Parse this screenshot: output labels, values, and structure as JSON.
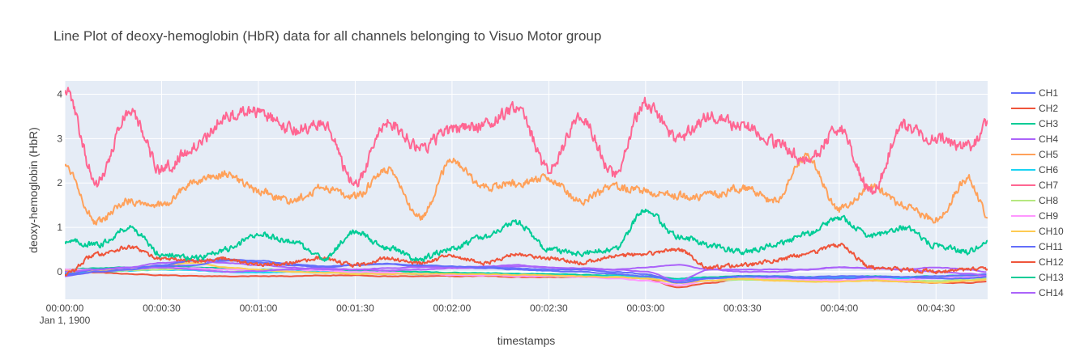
{
  "chart_data": {
    "type": "line",
    "title": "Line Plot of deoxy-hemoglobin (HbR) data for all channels belonging to Visuo Motor group",
    "xlabel": "timestamps",
    "ylabel": "deoxy-hemoglobin (HbR)",
    "x_range_seconds": [
      0,
      286
    ],
    "ylim": [
      -0.62,
      4.3
    ],
    "grid": true,
    "legend_position": "right",
    "x_ticks": [
      {
        "t": 0,
        "label": "00:00:00",
        "sublabel": "Jan 1, 1900"
      },
      {
        "t": 30,
        "label": "00:00:30"
      },
      {
        "t": 60,
        "label": "00:01:00"
      },
      {
        "t": 90,
        "label": "00:01:30"
      },
      {
        "t": 120,
        "label": "00:02:00"
      },
      {
        "t": 150,
        "label": "00:02:30"
      },
      {
        "t": 180,
        "label": "00:03:00"
      },
      {
        "t": 210,
        "label": "00:03:30"
      },
      {
        "t": 240,
        "label": "00:04:00"
      },
      {
        "t": 270,
        "label": "00:04:30"
      }
    ],
    "y_ticks": [
      {
        "v": 0,
        "label": "0"
      },
      {
        "v": 1,
        "label": "1"
      },
      {
        "v": 2,
        "label": "2"
      },
      {
        "v": 3,
        "label": "3"
      },
      {
        "v": 4,
        "label": "4"
      }
    ],
    "x_sample_seconds": [
      0,
      10,
      20,
      30,
      40,
      50,
      60,
      70,
      80,
      90,
      100,
      110,
      120,
      130,
      140,
      150,
      160,
      170,
      180,
      190,
      200,
      210,
      220,
      230,
      240,
      250,
      260,
      270,
      280,
      286
    ],
    "series": [
      {
        "name": "CH1",
        "color": "#636efa",
        "values": [
          -0.05,
          0.05,
          0.1,
          0.12,
          0.15,
          0.25,
          0.2,
          0.15,
          0.1,
          0.15,
          0.18,
          0.12,
          0.1,
          0.08,
          0.05,
          0.02,
          0.0,
          -0.05,
          -0.1,
          -0.2,
          -0.15,
          -0.1,
          -0.1,
          -0.12,
          -0.1,
          -0.1,
          -0.12,
          -0.1,
          -0.08,
          -0.05
        ]
      },
      {
        "name": "CH2",
        "color": "#ef553b",
        "values": [
          -0.05,
          0.4,
          0.55,
          0.3,
          0.25,
          0.3,
          0.15,
          0.2,
          0.3,
          0.15,
          0.3,
          0.2,
          0.35,
          0.2,
          0.4,
          0.3,
          0.2,
          0.35,
          0.4,
          0.5,
          0.1,
          0.15,
          0.25,
          0.4,
          0.6,
          0.1,
          0.05,
          0.0,
          0.05,
          0.05
        ]
      },
      {
        "name": "CH3",
        "color": "#00cc96",
        "values": [
          0.7,
          0.6,
          1.0,
          0.4,
          0.3,
          0.5,
          0.85,
          0.7,
          0.3,
          0.9,
          0.55,
          0.3,
          0.5,
          0.8,
          1.1,
          0.5,
          0.4,
          0.5,
          1.4,
          0.8,
          0.6,
          0.45,
          0.6,
          0.85,
          1.2,
          0.8,
          1.0,
          0.6,
          0.45,
          0.7
        ]
      },
      {
        "name": "CH4",
        "color": "#ab63fa",
        "values": [
          -0.1,
          0.0,
          0.05,
          0.1,
          0.05,
          0.0,
          0.02,
          0.05,
          0.08,
          0.05,
          0.03,
          0.05,
          0.08,
          0.1,
          0.12,
          0.1,
          0.08,
          0.05,
          0.0,
          -0.2,
          0.05,
          0.0,
          0.0,
          0.05,
          0.1,
          0.08,
          0.05,
          0.0,
          -0.05,
          -0.1
        ]
      },
      {
        "name": "CH5",
        "color": "#ffa15a",
        "values": [
          2.4,
          1.1,
          1.6,
          1.5,
          2.0,
          2.2,
          1.8,
          1.6,
          1.9,
          1.7,
          2.3,
          1.2,
          2.5,
          1.9,
          2.0,
          2.1,
          1.6,
          1.9,
          1.8,
          1.7,
          1.7,
          1.9,
          1.6,
          2.6,
          1.4,
          1.9,
          1.5,
          1.2,
          2.1,
          1.3
        ]
      },
      {
        "name": "CH6",
        "color": "#19d3f3",
        "values": [
          -0.02,
          0.0,
          0.02,
          0.05,
          0.03,
          0.0,
          -0.02,
          0.0,
          0.02,
          0.0,
          -0.02,
          -0.05,
          -0.05,
          -0.05,
          -0.07,
          -0.08,
          -0.1,
          -0.1,
          -0.12,
          -0.18,
          -0.15,
          -0.12,
          -0.15,
          -0.15,
          -0.12,
          -0.12,
          -0.15,
          -0.15,
          -0.12,
          -0.1
        ]
      },
      {
        "name": "CH7",
        "color": "#ff6692",
        "values": [
          4.1,
          2.0,
          3.6,
          2.3,
          2.8,
          3.5,
          3.6,
          3.2,
          3.3,
          2.0,
          3.4,
          2.8,
          3.2,
          3.3,
          3.7,
          2.3,
          3.5,
          2.2,
          3.8,
          3.0,
          3.5,
          3.3,
          2.9,
          2.5,
          3.2,
          1.8,
          3.3,
          3.0,
          2.8,
          3.3
        ]
      },
      {
        "name": "CH8",
        "color": "#b6e880",
        "values": [
          0.0,
          0.02,
          0.03,
          0.05,
          0.06,
          0.05,
          0.03,
          0.0,
          -0.02,
          -0.03,
          -0.05,
          -0.05,
          -0.06,
          -0.07,
          -0.08,
          -0.1,
          -0.12,
          -0.12,
          -0.15,
          -0.25,
          -0.2,
          -0.18,
          -0.18,
          -0.2,
          -0.2,
          -0.18,
          -0.2,
          -0.2,
          -0.18,
          -0.15
        ]
      },
      {
        "name": "CH9",
        "color": "#ff97ff",
        "values": [
          0.05,
          0.05,
          0.08,
          0.1,
          0.08,
          0.05,
          0.05,
          0.05,
          0.03,
          0.0,
          -0.02,
          -0.05,
          -0.08,
          -0.08,
          -0.1,
          -0.1,
          -0.12,
          -0.15,
          -0.2,
          -0.3,
          -0.2,
          -0.15,
          -0.15,
          -0.18,
          -0.2,
          -0.15,
          -0.18,
          -0.15,
          -0.12,
          -0.1
        ]
      },
      {
        "name": "CH10",
        "color": "#fecb52",
        "values": [
          0.02,
          0.03,
          0.05,
          0.15,
          0.2,
          0.1,
          0.05,
          0.0,
          -0.02,
          -0.05,
          -0.05,
          -0.05,
          -0.05,
          -0.06,
          -0.07,
          -0.08,
          -0.1,
          -0.12,
          -0.15,
          -0.25,
          -0.2,
          -0.15,
          -0.2,
          -0.22,
          -0.22,
          -0.2,
          -0.22,
          -0.25,
          -0.2,
          -0.18
        ]
      },
      {
        "name": "CH11",
        "color": "#636efa",
        "values": [
          -0.08,
          0.0,
          0.05,
          0.15,
          0.25,
          0.28,
          0.25,
          0.18,
          0.12,
          0.15,
          0.18,
          0.15,
          0.12,
          0.1,
          0.08,
          0.05,
          0.05,
          0.0,
          -0.05,
          -0.25,
          -0.15,
          -0.1,
          -0.12,
          -0.15,
          -0.15,
          -0.12,
          -0.12,
          -0.15,
          -0.15,
          -0.12
        ]
      },
      {
        "name": "CH12",
        "color": "#ef553b",
        "values": [
          0.0,
          -0.02,
          -0.05,
          -0.08,
          -0.1,
          -0.1,
          -0.1,
          -0.1,
          -0.08,
          -0.08,
          -0.1,
          -0.1,
          -0.1,
          -0.1,
          -0.12,
          -0.12,
          -0.12,
          -0.12,
          -0.15,
          -0.35,
          -0.25,
          -0.15,
          -0.15,
          -0.18,
          -0.2,
          -0.2,
          -0.22,
          -0.25,
          -0.25,
          -0.22
        ]
      },
      {
        "name": "CH13",
        "color": "#00cc96",
        "values": [
          0.05,
          0.08,
          0.1,
          0.12,
          0.1,
          0.08,
          0.05,
          0.05,
          0.05,
          0.03,
          0.02,
          0.0,
          -0.02,
          -0.03,
          -0.05,
          -0.05,
          -0.07,
          -0.08,
          -0.1,
          -0.15,
          -0.12,
          -0.1,
          -0.1,
          -0.12,
          -0.12,
          -0.1,
          -0.12,
          -0.1,
          -0.08,
          -0.08
        ]
      },
      {
        "name": "CH14",
        "color": "#ab63fa",
        "values": [
          0.0,
          0.05,
          0.1,
          0.2,
          0.25,
          0.2,
          0.15,
          0.1,
          0.05,
          0.05,
          0.08,
          0.1,
          0.1,
          0.12,
          0.15,
          0.1,
          0.05,
          0.05,
          0.1,
          0.15,
          0.05,
          0.05,
          0.05,
          0.05,
          0.1,
          0.08,
          0.05,
          0.1,
          0.05,
          0.0
        ]
      }
    ]
  }
}
